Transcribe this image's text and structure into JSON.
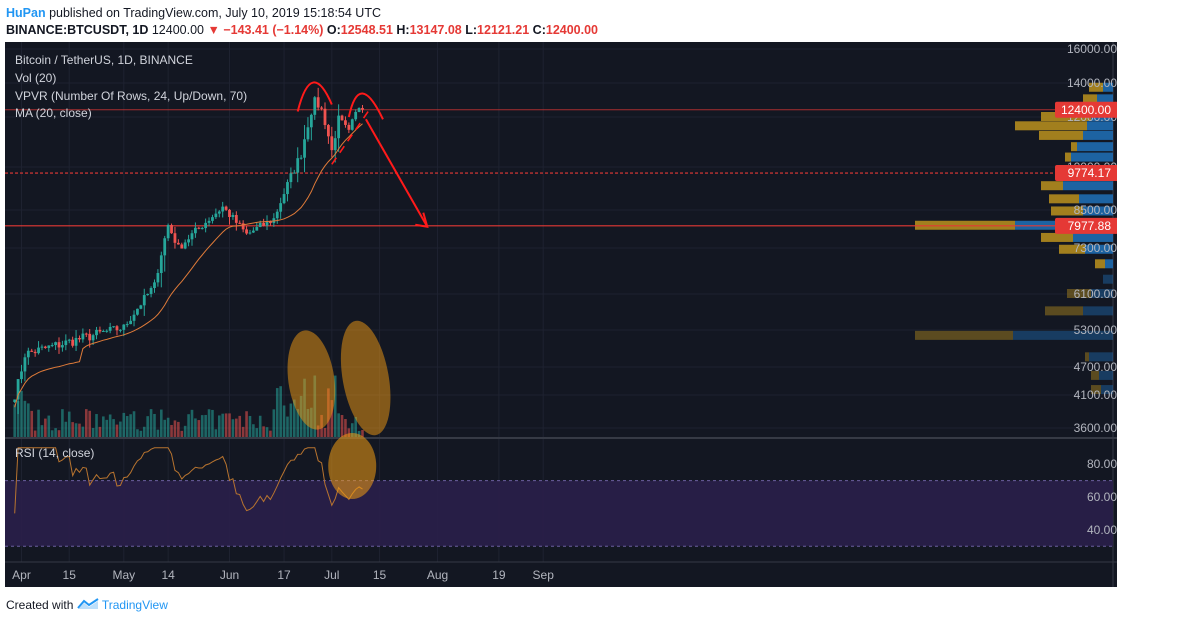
{
  "header": {
    "author": "HuPan",
    "published_text": "published on TradingView.com, July 10, 2019 15:18:54 UTC",
    "symbol": "BINANCE:BTCUSDT, 1D",
    "last": "12400.00",
    "change": "▼ −143.41 (−1.14%)",
    "o_label": "O:",
    "o_value": "12548.51",
    "h_label": "H:",
    "h_value": "13147.08",
    "l_label": "L:",
    "l_value": "12121.21",
    "c_label": "C:",
    "c_value": "12400.00"
  },
  "legend": {
    "title": "Bitcoin / TetherUS, 1D, BINANCE",
    "vol": "Vol (20)",
    "vpvr": "VPVR (Number Of Rows, 24, Up/Down, 70)",
    "ma": "MA (20, close)",
    "rsi": "RSI (14, close)"
  },
  "footer": {
    "created_with": "Created with",
    "brand": "TradingView"
  },
  "colors": {
    "background": "#131722",
    "up": "#26a69a",
    "down": "#ef5350",
    "ma": "#e07b39",
    "rsi": "#b8742f",
    "price_line": "#e53935",
    "annotation": "#ff1a1a",
    "highlight": "#f39c12",
    "vpvr_up": "#1f6bb0",
    "vpvr_down": "#b38b1e"
  },
  "chart_data": {
    "type": "candlestick",
    "price_axis_ticks": [
      "16000.00",
      "14000.00",
      "12000.00",
      "10000.00",
      "8500.00",
      "7300.00",
      "6100.00",
      "5300.00",
      "4700.00",
      "4100.00",
      "3600.00"
    ],
    "rsi_axis_ticks": [
      "80.00",
      "60.00",
      "40.00"
    ],
    "rsi_bands": [
      70,
      30
    ],
    "time_axis_ticks": [
      "Apr",
      "15",
      "May",
      "14",
      "Jun",
      "17",
      "Jul",
      "15",
      "Aug",
      "19",
      "Sep"
    ],
    "price_badges": [
      {
        "label": "12400.00",
        "value": 12400
      },
      {
        "label": "9774.17",
        "value": 9774.17
      },
      {
        "label": "7977.88",
        "value": 7977.88
      }
    ],
    "horizontal_levels": [
      12400,
      9774.17,
      7977.88
    ],
    "series_keypoints": [
      {
        "date": "2019-03-30",
        "close": 4100
      },
      {
        "date": "2019-04-02",
        "close": 4900
      },
      {
        "date": "2019-04-15",
        "close": 5100
      },
      {
        "date": "2019-05-01",
        "close": 5350
      },
      {
        "date": "2019-05-10",
        "close": 6300
      },
      {
        "date": "2019-05-14",
        "close": 8000
      },
      {
        "date": "2019-05-17",
        "close": 7300
      },
      {
        "date": "2019-05-30",
        "close": 8600
      },
      {
        "date": "2019-06-06",
        "close": 7700
      },
      {
        "date": "2019-06-14",
        "close": 8200
      },
      {
        "date": "2019-06-22",
        "close": 10500
      },
      {
        "date": "2019-06-26",
        "close": 12900
      },
      {
        "date": "2019-06-28",
        "close": 12400
      },
      {
        "date": "2019-07-01",
        "close": 10600
      },
      {
        "date": "2019-07-03",
        "close": 11900
      },
      {
        "date": "2019-07-06",
        "close": 11300
      },
      {
        "date": "2019-07-09",
        "close": 12600
      },
      {
        "date": "2019-07-10",
        "close": 12400
      }
    ],
    "ma_period": 20,
    "rsi_period": 14,
    "vpvr_rows": 24
  }
}
